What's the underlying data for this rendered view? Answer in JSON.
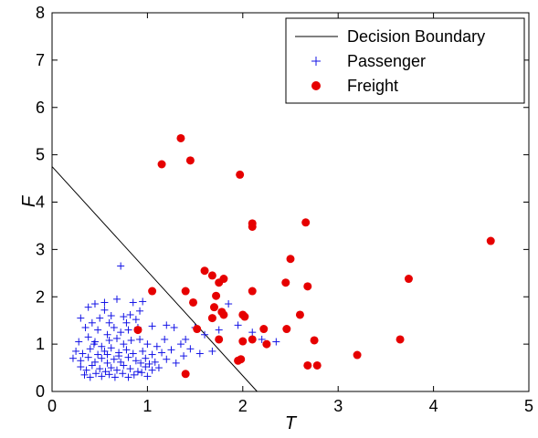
{
  "chart_data": {
    "type": "scatter",
    "xlabel": "T",
    "ylabel": "F",
    "xlim": [
      0,
      5
    ],
    "ylim": [
      0,
      8
    ],
    "xticks": [
      "0",
      "1",
      "2",
      "3",
      "4",
      "5"
    ],
    "yticks": [
      "0",
      "1",
      "2",
      "3",
      "4",
      "5",
      "6",
      "7",
      "8"
    ],
    "grid": false,
    "legend_position": "top-right",
    "legend": [
      "Decision Boundary",
      "Passenger",
      "Freight"
    ],
    "colors": {
      "boundary": "#000000",
      "passenger": "#1414e6",
      "freight": "#e60000"
    },
    "boundary": {
      "x": [
        0,
        2.15
      ],
      "y": [
        4.75,
        0
      ]
    },
    "series": [
      {
        "name": "Passenger",
        "marker": "plus",
        "points": [
          [
            0.72,
            2.65
          ],
          [
            0.38,
            1.78
          ],
          [
            0.45,
            1.85
          ],
          [
            0.55,
            1.88
          ],
          [
            0.68,
            1.95
          ],
          [
            0.85,
            1.88
          ],
          [
            0.92,
            1.7
          ],
          [
            0.3,
            1.55
          ],
          [
            0.42,
            1.45
          ],
          [
            0.5,
            1.55
          ],
          [
            0.62,
            1.6
          ],
          [
            0.75,
            1.58
          ],
          [
            0.82,
            1.62
          ],
          [
            0.88,
            1.52
          ],
          [
            0.95,
            1.9
          ],
          [
            0.35,
            1.35
          ],
          [
            0.48,
            1.3
          ],
          [
            0.58,
            1.2
          ],
          [
            0.65,
            1.35
          ],
          [
            0.72,
            1.25
          ],
          [
            0.8,
            1.3
          ],
          [
            0.9,
            1.35
          ],
          [
            1.05,
            1.38
          ],
          [
            1.2,
            1.4
          ],
          [
            1.28,
            1.35
          ],
          [
            0.28,
            1.05
          ],
          [
            0.38,
            1.15
          ],
          [
            0.45,
            1.05
          ],
          [
            0.52,
            0.95
          ],
          [
            0.6,
            1.08
          ],
          [
            0.68,
            1.12
          ],
          [
            0.75,
            1.0
          ],
          [
            0.83,
            1.08
          ],
          [
            0.92,
            1.1
          ],
          [
            1.0,
            1.0
          ],
          [
            1.1,
            0.95
          ],
          [
            1.18,
            1.1
          ],
          [
            1.35,
            1.0
          ],
          [
            1.45,
            0.9
          ],
          [
            0.25,
            0.85
          ],
          [
            0.32,
            0.8
          ],
          [
            0.4,
            0.9
          ],
          [
            0.48,
            0.78
          ],
          [
            0.55,
            0.85
          ],
          [
            0.62,
            0.92
          ],
          [
            0.7,
            0.82
          ],
          [
            0.78,
            0.88
          ],
          [
            0.85,
            0.8
          ],
          [
            0.95,
            0.85
          ],
          [
            1.05,
            0.78
          ],
          [
            1.15,
            0.82
          ],
          [
            1.25,
            0.88
          ],
          [
            1.38,
            0.75
          ],
          [
            1.55,
            0.8
          ],
          [
            1.68,
            0.85
          ],
          [
            0.22,
            0.7
          ],
          [
            0.3,
            0.65
          ],
          [
            0.38,
            0.72
          ],
          [
            0.45,
            0.62
          ],
          [
            0.52,
            0.7
          ],
          [
            0.58,
            0.6
          ],
          [
            0.65,
            0.68
          ],
          [
            0.72,
            0.62
          ],
          [
            0.8,
            0.72
          ],
          [
            0.88,
            0.65
          ],
          [
            0.98,
            0.7
          ],
          [
            1.08,
            0.62
          ],
          [
            1.2,
            0.68
          ],
          [
            1.3,
            0.6
          ],
          [
            0.3,
            0.52
          ],
          [
            0.36,
            0.45
          ],
          [
            0.42,
            0.55
          ],
          [
            0.5,
            0.48
          ],
          [
            0.56,
            0.42
          ],
          [
            0.62,
            0.5
          ],
          [
            0.68,
            0.45
          ],
          [
            0.75,
            0.55
          ],
          [
            0.82,
            0.48
          ],
          [
            0.9,
            0.42
          ],
          [
            0.98,
            0.52
          ],
          [
            1.05,
            0.45
          ],
          [
            1.12,
            0.5
          ],
          [
            0.34,
            0.35
          ],
          [
            0.4,
            0.3
          ],
          [
            0.46,
            0.38
          ],
          [
            0.52,
            0.32
          ],
          [
            0.6,
            0.36
          ],
          [
            0.66,
            0.3
          ],
          [
            0.74,
            0.38
          ],
          [
            0.8,
            0.3
          ],
          [
            0.86,
            0.35
          ],
          [
            0.94,
            0.4
          ],
          [
            1.0,
            0.32
          ],
          [
            0.55,
            1.72
          ],
          [
            0.78,
            1.45
          ],
          [
            0.6,
            1.45
          ],
          [
            0.44,
            1.0
          ],
          [
            0.7,
            0.75
          ],
          [
            0.93,
            0.6
          ],
          [
            1.02,
            0.58
          ],
          [
            0.58,
            0.78
          ],
          [
            1.4,
            1.1
          ],
          [
            1.6,
            1.2
          ],
          [
            1.75,
            1.3
          ],
          [
            1.85,
            1.85
          ],
          [
            1.95,
            1.4
          ],
          [
            2.1,
            1.25
          ],
          [
            2.2,
            1.1
          ],
          [
            2.35,
            1.05
          ],
          [
            2.0,
            1.05
          ],
          [
            1.5,
            1.35
          ]
        ]
      },
      {
        "name": "Freight",
        "marker": "circle",
        "points": [
          [
            1.35,
            5.35
          ],
          [
            1.15,
            4.8
          ],
          [
            1.45,
            4.88
          ],
          [
            1.97,
            4.58
          ],
          [
            2.1,
            3.55
          ],
          [
            2.1,
            3.48
          ],
          [
            2.66,
            3.57
          ],
          [
            4.6,
            3.18
          ],
          [
            2.5,
            2.8
          ],
          [
            1.6,
            2.55
          ],
          [
            1.68,
            2.45
          ],
          [
            1.8,
            2.38
          ],
          [
            1.75,
            2.3
          ],
          [
            2.45,
            2.3
          ],
          [
            2.68,
            2.22
          ],
          [
            3.74,
            2.38
          ],
          [
            1.05,
            2.12
          ],
          [
            1.4,
            2.12
          ],
          [
            1.72,
            2.02
          ],
          [
            2.1,
            2.12
          ],
          [
            1.48,
            1.88
          ],
          [
            1.7,
            1.78
          ],
          [
            1.78,
            1.68
          ],
          [
            1.8,
            1.62
          ],
          [
            1.68,
            1.55
          ],
          [
            2.0,
            1.62
          ],
          [
            2.02,
            1.58
          ],
          [
            2.6,
            1.62
          ],
          [
            1.52,
            1.32
          ],
          [
            2.22,
            1.32
          ],
          [
            2.46,
            1.32
          ],
          [
            2.0,
            1.06
          ],
          [
            2.1,
            1.1
          ],
          [
            2.25,
            1.0
          ],
          [
            1.75,
            1.1
          ],
          [
            2.75,
            1.08
          ],
          [
            3.65,
            1.1
          ],
          [
            0.9,
            1.3
          ],
          [
            1.95,
            0.65
          ],
          [
            1.98,
            0.68
          ],
          [
            3.2,
            0.77
          ],
          [
            2.68,
            0.55
          ],
          [
            2.78,
            0.55
          ],
          [
            1.4,
            0.37
          ]
        ]
      }
    ]
  }
}
